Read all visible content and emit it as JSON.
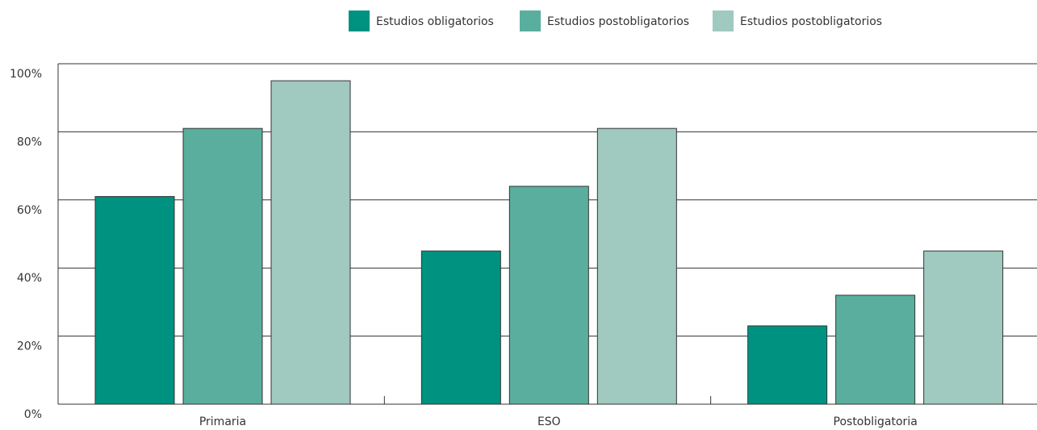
{
  "chart_data": {
    "type": "bar",
    "categories": [
      "Primaria",
      "ESO",
      "Postobligatoria"
    ],
    "series": [
      {
        "name": "Estudios obligatorios",
        "values": [
          61,
          45,
          23
        ],
        "color": "#009280"
      },
      {
        "name": "Estudios postobligatorios",
        "values": [
          81,
          64,
          32
        ],
        "color": "#5aae9e"
      },
      {
        "name": "Estudios postobligatorios",
        "values": [
          95,
          81,
          45
        ],
        "color": "#a0c9bf"
      }
    ],
    "y_ticks": [
      "0%",
      "20%",
      "40%",
      "60%",
      "80%",
      "100%"
    ],
    "ylim": [
      0,
      100
    ],
    "grid": true,
    "legend_position": "top-center"
  }
}
